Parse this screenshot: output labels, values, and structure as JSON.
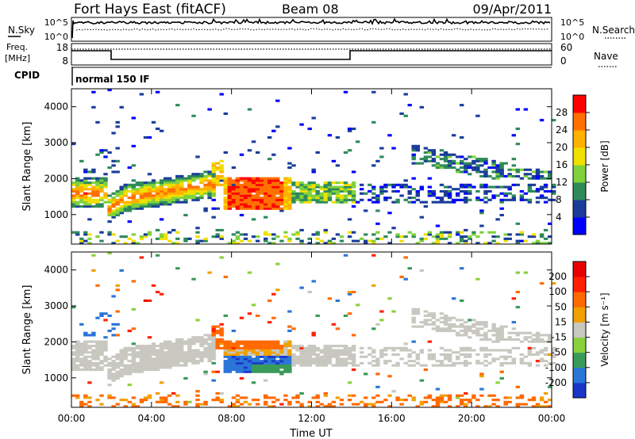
{
  "header": {
    "title": "Fort Hays East (fitACF)",
    "beam": "Beam 08",
    "date": "09/Apr/2011"
  },
  "panels": {
    "nsky": {
      "label": "N.Sky",
      "left_ticks": [
        "10^5",
        "10^0"
      ],
      "right_ticks": [
        "10^5",
        "10^0"
      ],
      "right_label": "N.Search"
    },
    "freq": {
      "label_line1": "Freq.",
      "label_line2": "[MHz]",
      "left_ticks": [
        "18",
        "8"
      ],
      "right_ticks": [
        "60",
        "0"
      ],
      "right_label": "Nave"
    },
    "cpid": {
      "label": "CPID",
      "value": "normal 150 IF"
    }
  },
  "power_colorbar": {
    "label": "Power [dB]",
    "ticks": [
      "4",
      "8",
      "12",
      "16",
      "20",
      "24",
      "28"
    ],
    "colors": [
      "#0000ff",
      "#1a3d9a",
      "#2f8a5a",
      "#7fd23c",
      "#f0e000",
      "#ffb000",
      "#ff7000",
      "#ff0000"
    ]
  },
  "velocity_colorbar": {
    "label": "Velocity [m s⁻¹]",
    "ticks": [
      "200",
      "100",
      "50",
      "15",
      "-15",
      "-50",
      "-100",
      "-200"
    ],
    "colors": [
      "#1a36c8",
      "#2a75d8",
      "#3a9a5a",
      "#8ad23c",
      "#c8c8c0",
      "#f0a000",
      "#ff6a00",
      "#ff2000",
      "#e80000"
    ]
  },
  "chart_data": [
    {
      "type": "heatmap",
      "name": "Power",
      "ylabel": "Slant Range [km]",
      "xlabel": "",
      "x_ticks": [
        "00:00",
        "04:00",
        "08:00",
        "12:00",
        "16:00",
        "20:00",
        "00:00"
      ],
      "y_ticks": [
        1000,
        2000,
        3000,
        4000
      ],
      "xlim": [
        0,
        24
      ],
      "ylim": [
        180,
        4500
      ],
      "value_range": [
        0,
        30
      ]
    },
    {
      "type": "heatmap",
      "name": "Velocity",
      "ylabel": "Slant Range [km]",
      "xlabel": "Time UT",
      "x_ticks": [
        "00:00",
        "04:00",
        "08:00",
        "12:00",
        "16:00",
        "20:00",
        "00:00"
      ],
      "y_ticks": [
        1000,
        2000,
        3000,
        4000
      ],
      "xlim": [
        0,
        24
      ],
      "ylim": [
        180,
        4500
      ],
      "value_range": [
        -250,
        250
      ]
    }
  ]
}
